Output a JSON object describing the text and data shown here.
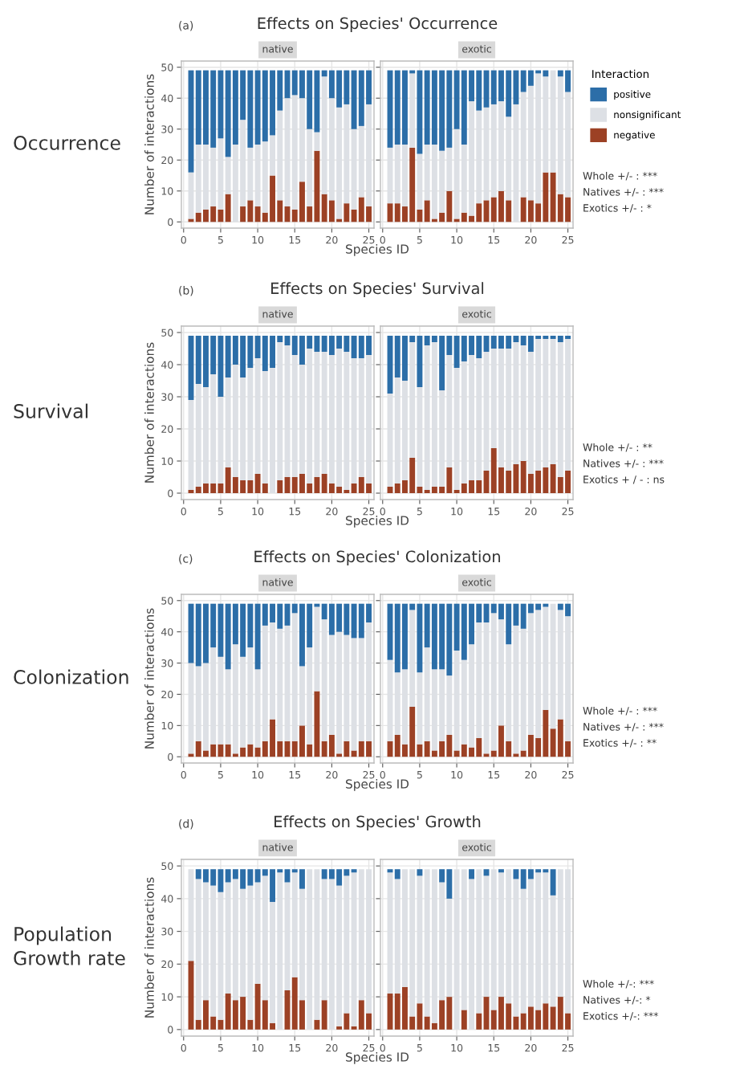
{
  "chart_data": [
    {
      "type": "bar",
      "stacked": true,
      "title": "Effects on Species' Occurrence",
      "subtitle": "native",
      "ylabel": "Number of interactions",
      "xlabel": "Species ID",
      "annotations": [
        "(a)",
        "Occurrence",
        "Whole +/- : ***",
        "Natives +/- : ***",
        "Exotics +/- : *"
      ],
      "x": [
        1,
        2,
        3,
        4,
        5,
        6,
        7,
        8,
        9,
        10,
        11,
        12,
        13,
        14,
        15,
        16,
        17,
        18,
        19,
        20,
        21,
        22,
        23,
        24,
        25
      ],
      "xlim": [
        -0.3,
        25.7
      ],
      "xticks": [
        0,
        5,
        10,
        15,
        20,
        25
      ],
      "ylim": [
        -2,
        52
      ],
      "yticks": [
        0,
        10,
        20,
        30,
        40,
        50
      ],
      "grid": true,
      "series": [
        {
          "color": "#9c4125",
          "values": [
            1,
            3,
            4,
            5,
            4,
            9,
            0,
            5,
            7,
            5,
            3,
            15,
            7,
            5,
            4,
            13,
            5,
            23,
            9,
            7,
            1,
            6,
            4,
            8,
            5
          ]
        },
        {
          "color": "#dde0e5",
          "values": [
            15,
            22,
            21,
            19,
            23,
            12,
            25,
            28,
            17,
            20,
            23,
            13,
            29,
            35,
            37,
            27,
            25,
            6,
            38,
            33,
            36,
            32,
            26,
            23,
            33
          ]
        },
        {
          "color": "#2c6ea8",
          "values": [
            33,
            24,
            24,
            25,
            22,
            28,
            24,
            16,
            25,
            24,
            23,
            21,
            13,
            9,
            8,
            9,
            19,
            20,
            2,
            9,
            12,
            11,
            19,
            18,
            11
          ]
        }
      ]
    },
    {
      "type": "bar",
      "stacked": true,
      "subtitle": "exotic",
      "x": [
        1,
        2,
        3,
        4,
        5,
        6,
        7,
        8,
        9,
        10,
        11,
        12,
        13,
        14,
        15,
        16,
        17,
        18,
        19,
        20,
        21,
        22,
        23,
        24,
        25
      ],
      "xlim": [
        -0.3,
        25.7
      ],
      "xticks": [
        0,
        5,
        10,
        15,
        20,
        25
      ],
      "ylim": [
        -2,
        52
      ],
      "yticks": [
        0,
        10,
        20,
        30,
        40,
        50
      ],
      "grid": true,
      "tick_labels": "x",
      "legend": "right",
      "legend_title": "Interaction",
      "series": [
        {
          "name": "negative",
          "color": "#9c4125",
          "values": [
            6,
            6,
            5,
            24,
            4,
            7,
            1,
            3,
            10,
            1,
            3,
            2,
            6,
            7,
            8,
            10,
            7,
            0,
            8,
            7,
            6,
            16,
            16,
            9,
            8
          ]
        },
        {
          "name": "nonsignificant",
          "color": "#dde0e5",
          "values": [
            18,
            19,
            20,
            24,
            18,
            18,
            24,
            20,
            14,
            29,
            22,
            37,
            30,
            30,
            30,
            29,
            27,
            38,
            34,
            37,
            42,
            31,
            33,
            38,
            34
          ]
        },
        {
          "name": "positive",
          "color": "#2c6ea8",
          "values": [
            25,
            24,
            24,
            1,
            27,
            24,
            24,
            26,
            25,
            19,
            24,
            10,
            13,
            12,
            11,
            10,
            15,
            11,
            7,
            5,
            1,
            2,
            0,
            2,
            7
          ]
        }
      ]
    },
    {
      "type": "bar",
      "stacked": true,
      "title": "Effects on Species' Survival",
      "subtitle": "native",
      "ylabel": "Number of interactions",
      "xlabel": "Species ID",
      "annotations": [
        "(b)",
        "Survival",
        "Whole +/- : **",
        "Natives +/- : ***",
        "Exotics + / - : ns"
      ],
      "x": [
        1,
        2,
        3,
        4,
        5,
        6,
        7,
        8,
        9,
        10,
        11,
        12,
        13,
        14,
        15,
        16,
        17,
        18,
        19,
        20,
        21,
        22,
        23,
        24,
        25
      ],
      "xlim": [
        -0.3,
        25.7
      ],
      "xticks": [
        0,
        5,
        10,
        15,
        20,
        25
      ],
      "ylim": [
        -2,
        52
      ],
      "yticks": [
        0,
        10,
        20,
        30,
        40,
        50
      ],
      "grid": true,
      "series": [
        {
          "color": "#9c4125",
          "values": [
            1,
            2,
            3,
            3,
            3,
            8,
            5,
            4,
            4,
            6,
            3,
            0,
            4,
            5,
            5,
            6,
            3,
            5,
            6,
            3,
            2,
            1,
            3,
            5,
            3
          ]
        },
        {
          "color": "#dde0e5",
          "values": [
            28,
            32,
            30,
            34,
            27,
            28,
            35,
            32,
            35,
            36,
            35,
            39,
            43,
            41,
            38,
            34,
            42,
            39,
            38,
            40,
            43,
            43,
            39,
            37,
            40
          ]
        },
        {
          "color": "#2c6ea8",
          "values": [
            20,
            15,
            16,
            12,
            19,
            13,
            9,
            13,
            10,
            7,
            11,
            10,
            2,
            3,
            6,
            9,
            4,
            5,
            5,
            6,
            4,
            5,
            7,
            7,
            6
          ]
        }
      ]
    },
    {
      "type": "bar",
      "stacked": true,
      "subtitle": "exotic",
      "x": [
        1,
        2,
        3,
        4,
        5,
        6,
        7,
        8,
        9,
        10,
        11,
        12,
        13,
        14,
        15,
        16,
        17,
        18,
        19,
        20,
        21,
        22,
        23,
        24,
        25
      ],
      "xlim": [
        -0.3,
        25.7
      ],
      "xticks": [
        0,
        5,
        10,
        15,
        20,
        25
      ],
      "ylim": [
        -2,
        52
      ],
      "yticks": [
        0,
        10,
        20,
        30,
        40,
        50
      ],
      "grid": true,
      "tick_labels": "x",
      "series": [
        {
          "color": "#9c4125",
          "values": [
            2,
            3,
            4,
            11,
            2,
            1,
            2,
            2,
            8,
            1,
            3,
            4,
            4,
            7,
            14,
            8,
            7,
            9,
            10,
            6,
            7,
            8,
            9,
            5,
            7
          ]
        },
        {
          "color": "#dde0e5",
          "values": [
            29,
            33,
            31,
            36,
            31,
            45,
            45,
            30,
            35,
            38,
            38,
            39,
            38,
            37,
            31,
            37,
            38,
            38,
            36,
            38,
            41,
            40,
            39,
            42,
            41
          ]
        },
        {
          "color": "#2c6ea8",
          "values": [
            18,
            13,
            14,
            2,
            16,
            3,
            2,
            17,
            6,
            10,
            8,
            6,
            7,
            5,
            4,
            4,
            4,
            2,
            3,
            5,
            1,
            1,
            1,
            2,
            1
          ]
        }
      ]
    },
    {
      "type": "bar",
      "stacked": true,
      "title": "Effects on Species' Colonization",
      "subtitle": "native",
      "ylabel": "Number of interactions",
      "xlabel": "Species ID",
      "annotations": [
        "(c)",
        "Colonization",
        "Whole +/- : ***",
        "Natives +/- : ***",
        "Exotics +/- : **"
      ],
      "x": [
        1,
        2,
        3,
        4,
        5,
        6,
        7,
        8,
        9,
        10,
        11,
        12,
        13,
        14,
        15,
        16,
        17,
        18,
        19,
        20,
        21,
        22,
        23,
        24,
        25
      ],
      "xlim": [
        -0.3,
        25.7
      ],
      "xticks": [
        0,
        5,
        10,
        15,
        20,
        25
      ],
      "ylim": [
        -2,
        52
      ],
      "yticks": [
        0,
        10,
        20,
        30,
        40,
        50
      ],
      "grid": true,
      "series": [
        {
          "color": "#9c4125",
          "values": [
            1,
            5,
            2,
            4,
            4,
            4,
            1,
            3,
            4,
            3,
            5,
            12,
            5,
            5,
            5,
            10,
            4,
            21,
            5,
            7,
            1,
            5,
            2,
            5,
            5
          ]
        },
        {
          "color": "#dde0e5",
          "values": [
            29,
            24,
            28,
            31,
            28,
            24,
            35,
            29,
            31,
            25,
            37,
            31,
            36,
            37,
            41,
            19,
            31,
            27,
            39,
            32,
            39,
            34,
            36,
            33,
            38
          ]
        },
        {
          "color": "#2c6ea8",
          "values": [
            19,
            20,
            19,
            14,
            17,
            21,
            13,
            17,
            14,
            21,
            7,
            6,
            8,
            7,
            3,
            20,
            14,
            1,
            5,
            10,
            9,
            10,
            11,
            11,
            6
          ]
        }
      ]
    },
    {
      "type": "bar",
      "stacked": true,
      "subtitle": "exotic",
      "x": [
        1,
        2,
        3,
        4,
        5,
        6,
        7,
        8,
        9,
        10,
        11,
        12,
        13,
        14,
        15,
        16,
        17,
        18,
        19,
        20,
        21,
        22,
        23,
        24,
        25
      ],
      "xlim": [
        -0.3,
        25.7
      ],
      "xticks": [
        0,
        5,
        10,
        15,
        20,
        25
      ],
      "ylim": [
        -2,
        52
      ],
      "yticks": [
        0,
        10,
        20,
        30,
        40,
        50
      ],
      "grid": true,
      "tick_labels": "x",
      "series": [
        {
          "color": "#9c4125",
          "values": [
            5,
            7,
            4,
            16,
            4,
            5,
            2,
            5,
            7,
            2,
            4,
            3,
            6,
            1,
            2,
            10,
            5,
            1,
            2,
            7,
            6,
            15,
            9,
            12,
            5
          ]
        },
        {
          "color": "#dde0e5",
          "values": [
            26,
            20,
            24,
            31,
            23,
            30,
            26,
            23,
            19,
            32,
            27,
            33,
            37,
            42,
            44,
            34,
            31,
            41,
            39,
            39,
            41,
            33,
            40,
            35,
            40
          ]
        },
        {
          "color": "#2c6ea8",
          "values": [
            18,
            22,
            21,
            2,
            22,
            14,
            21,
            21,
            23,
            15,
            18,
            13,
            6,
            6,
            3,
            5,
            13,
            7,
            8,
            3,
            2,
            1,
            0,
            2,
            4
          ]
        }
      ]
    },
    {
      "type": "bar",
      "stacked": true,
      "title": "Effects on Species' Growth",
      "subtitle": "native",
      "ylabel": "Number of interactions",
      "xlabel": "Species ID",
      "annotations": [
        "(d)",
        "Population\nGrowth rate",
        "Whole +/-: ***",
        "Natives +/-: *",
        "Exotics +/-: ***"
      ],
      "x": [
        1,
        2,
        3,
        4,
        5,
        6,
        7,
        8,
        9,
        10,
        11,
        12,
        13,
        14,
        15,
        16,
        17,
        18,
        19,
        20,
        21,
        22,
        23,
        24,
        25
      ],
      "xlim": [
        -0.3,
        25.7
      ],
      "xticks": [
        0,
        5,
        10,
        15,
        20,
        25
      ],
      "ylim": [
        -2,
        52
      ],
      "yticks": [
        0,
        10,
        20,
        30,
        40,
        50
      ],
      "grid": true,
      "series": [
        {
          "color": "#9c4125",
          "values": [
            21,
            3,
            9,
            4,
            3,
            11,
            9,
            10,
            3,
            14,
            9,
            2,
            0,
            12,
            16,
            9,
            0,
            3,
            9,
            0,
            1,
            5,
            1,
            9,
            5
          ]
        },
        {
          "color": "#dde0e5",
          "values": [
            28,
            43,
            36,
            40,
            39,
            34,
            37,
            33,
            41,
            31,
            38,
            37,
            48,
            33,
            32,
            34,
            49,
            46,
            37,
            46,
            43,
            42,
            47,
            40,
            44
          ]
        },
        {
          "color": "#2c6ea8",
          "values": [
            0,
            3,
            4,
            5,
            7,
            4,
            3,
            6,
            5,
            4,
            2,
            10,
            1,
            4,
            1,
            6,
            0,
            0,
            3,
            3,
            5,
            2,
            1,
            0,
            0
          ]
        }
      ]
    },
    {
      "type": "bar",
      "stacked": true,
      "subtitle": "exotic",
      "x": [
        1,
        2,
        3,
        4,
        5,
        6,
        7,
        8,
        9,
        10,
        11,
        12,
        13,
        14,
        15,
        16,
        17,
        18,
        19,
        20,
        21,
        22,
        23,
        24,
        25
      ],
      "xlim": [
        -0.3,
        25.7
      ],
      "xticks": [
        0,
        5,
        10,
        15,
        20,
        25
      ],
      "ylim": [
        -2,
        52
      ],
      "yticks": [
        0,
        10,
        20,
        30,
        40,
        50
      ],
      "grid": true,
      "tick_labels": "x",
      "series": [
        {
          "color": "#9c4125",
          "values": [
            11,
            11,
            13,
            4,
            8,
            4,
            2,
            9,
            10,
            0,
            6,
            0,
            5,
            10,
            6,
            10,
            8,
            4,
            5,
            7,
            6,
            8,
            7,
            10,
            5
          ]
        },
        {
          "color": "#dde0e5",
          "values": [
            37,
            35,
            36,
            45,
            39,
            45,
            47,
            36,
            30,
            49,
            43,
            46,
            44,
            37,
            43,
            38,
            41,
            42,
            38,
            39,
            42,
            40,
            34,
            39,
            44
          ]
        },
        {
          "color": "#2c6ea8",
          "values": [
            1,
            3,
            0,
            0,
            2,
            0,
            0,
            4,
            9,
            0,
            0,
            3,
            0,
            2,
            0,
            1,
            0,
            3,
            6,
            3,
            1,
            1,
            8,
            0,
            0
          ]
        }
      ]
    }
  ]
}
